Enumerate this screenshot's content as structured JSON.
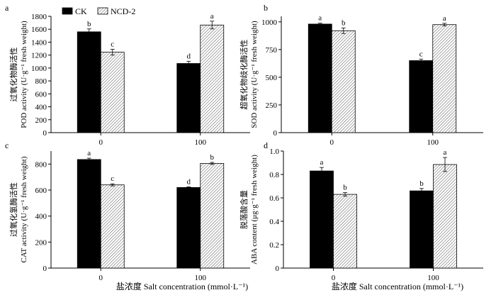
{
  "legend": [
    {
      "name": "CK",
      "pattern": "solid",
      "color": "#000000"
    },
    {
      "name": "NCD-2",
      "pattern": "hatched",
      "color": "#ffffff"
    }
  ],
  "xlabel": "盐浓度 Salt concentration (mmol·L⁻¹)",
  "chart_data": [
    {
      "id": "a",
      "panel_label": "a",
      "type": "bar",
      "categories": [
        "0",
        "100"
      ],
      "series": [
        {
          "name": "CK",
          "values": [
            1560,
            1070
          ],
          "errors": [
            45,
            35
          ],
          "letters": [
            "b",
            "d"
          ]
        },
        {
          "name": "NCD-2",
          "values": [
            1245,
            1665
          ],
          "errors": [
            45,
            60
          ],
          "letters": [
            "c",
            "a"
          ]
        }
      ],
      "ylabel_cn": "过氧化物酶活性",
      "ylabel_en": "POD activity (U·g⁻¹ fresh weight)",
      "ylim": [
        0,
        1800
      ],
      "yticks": [
        0,
        200,
        400,
        600,
        800,
        1000,
        1200,
        1400,
        1600,
        1800
      ],
      "yticklabels": [
        "0",
        "200",
        "400",
        "600",
        "800",
        "1000",
        "1200",
        "1400",
        "1600",
        "1800"
      ]
    },
    {
      "id": "b",
      "panel_label": "b",
      "type": "bar",
      "categories": [
        "0",
        "100"
      ],
      "series": [
        {
          "name": "CK",
          "values": [
            980,
            650
          ],
          "errors": [
            8,
            14
          ],
          "letters": [
            "a",
            "c"
          ]
        },
        {
          "name": "NCD-2",
          "values": [
            920,
            975
          ],
          "errors": [
            25,
            12
          ],
          "letters": [
            "b",
            "a"
          ]
        }
      ],
      "ylabel_cn": "超氧化物歧化酶活性",
      "ylabel_en": "SOD activity (U·g⁻¹ fresh weight)",
      "ylim": [
        0,
        1050
      ],
      "yticks": [
        0,
        250,
        500,
        750,
        1000
      ],
      "yticklabels": [
        "0",
        "250",
        "500",
        "750",
        "1000"
      ]
    },
    {
      "id": "c",
      "panel_label": "c",
      "type": "bar",
      "categories": [
        "0",
        "100"
      ],
      "series": [
        {
          "name": "CK",
          "values": [
            835,
            620
          ],
          "errors": [
            10,
            5
          ],
          "letters": [
            "a",
            "d"
          ]
        },
        {
          "name": "NCD-2",
          "values": [
            640,
            805
          ],
          "errors": [
            8,
            8
          ],
          "letters": [
            "c",
            "b"
          ]
        }
      ],
      "ylabel_cn": "过氧化氢酶活性",
      "ylabel_en": "CAT activity (U·g⁻¹ fresh weight)",
      "ylim": [
        0,
        900
      ],
      "yticks": [
        0,
        200,
        400,
        600,
        800
      ],
      "yticklabels": [
        "0",
        "200",
        "400",
        "600",
        "800"
      ]
    },
    {
      "id": "d",
      "panel_label": "d",
      "type": "bar",
      "categories": [
        "0",
        "100"
      ],
      "series": [
        {
          "name": "CK",
          "values": [
            0.83,
            0.66
          ],
          "errors": [
            0.03,
            0.02
          ],
          "letters": [
            "a",
            "b"
          ]
        },
        {
          "name": "NCD-2",
          "values": [
            0.63,
            0.885
          ],
          "errors": [
            0.015,
            0.06
          ],
          "letters": [
            "b",
            "a"
          ]
        }
      ],
      "ylabel_cn": "脱落酸含量",
      "ylabel_en": "ABA content (μg·g⁻¹ fresh weight)",
      "ylim": [
        0,
        1.0
      ],
      "yticks": [
        0,
        0.2,
        0.4,
        0.6,
        0.8,
        1.0
      ],
      "yticklabels": [
        "0",
        "0.2",
        "0.4",
        "0.6",
        "0.8",
        "1.0"
      ]
    }
  ]
}
